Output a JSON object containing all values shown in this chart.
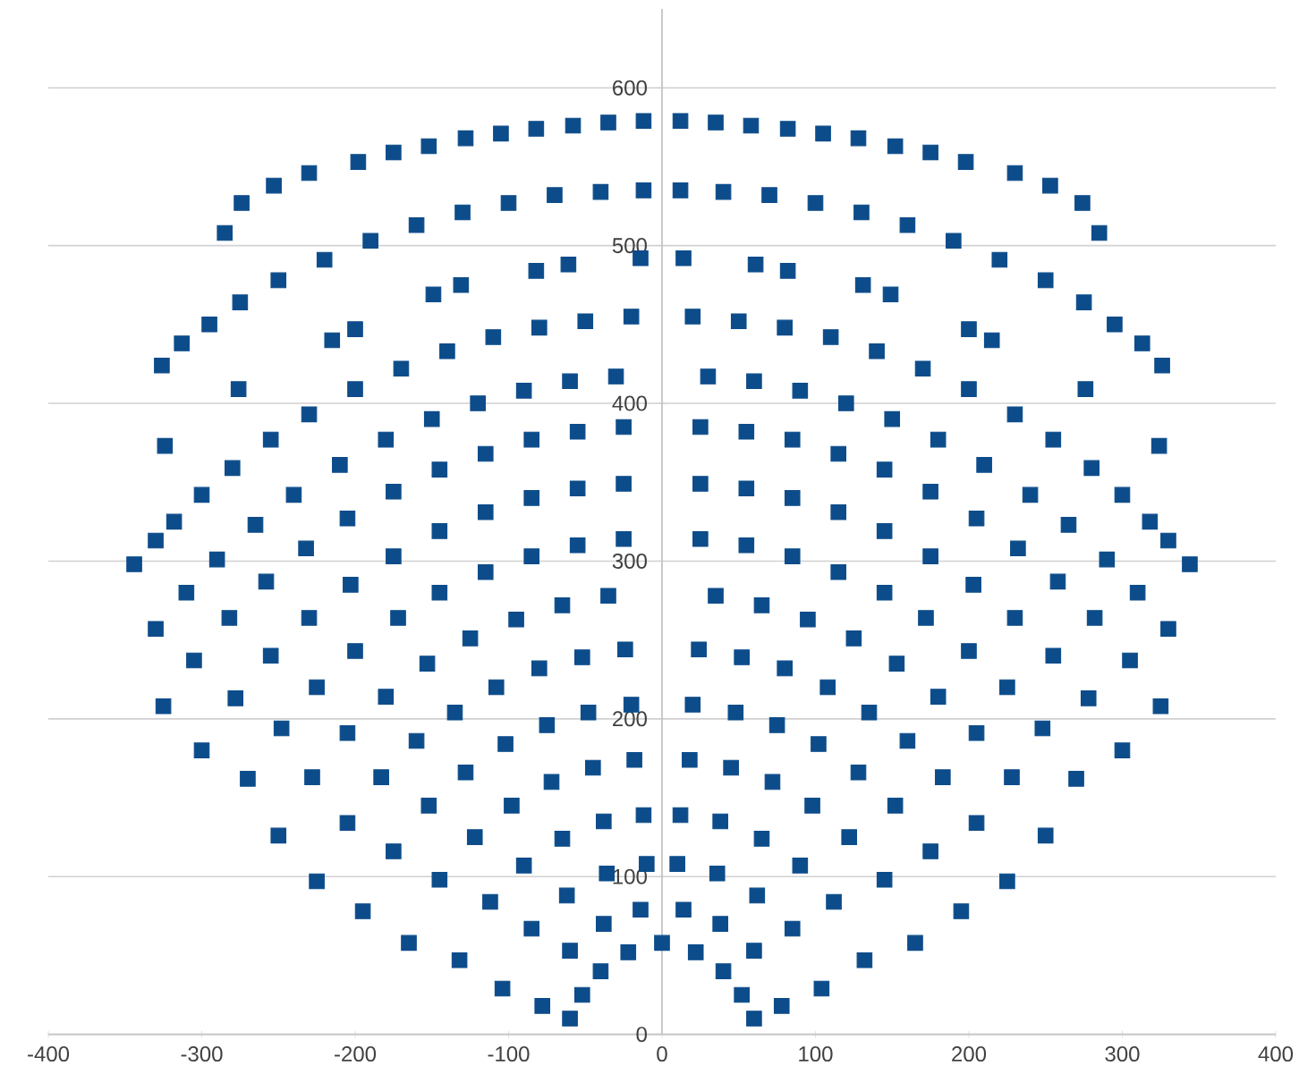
{
  "chart_data": {
    "type": "scatter",
    "x": [
      -285,
      -274,
      -253,
      -230,
      -198,
      -175,
      -152,
      -128,
      -105,
      -82,
      -58,
      -35,
      -12,
      285,
      274,
      253,
      230,
      198,
      175,
      152,
      128,
      105,
      82,
      58,
      35,
      12,
      -326,
      -313,
      -295,
      -275,
      -250,
      -220,
      -190,
      -160,
      -130,
      -100,
      -70,
      -40,
      -12,
      326,
      313,
      295,
      275,
      250,
      220,
      190,
      160,
      130,
      100,
      70,
      40,
      12,
      -324,
      -276,
      -215,
      -200,
      -149,
      -131,
      -82,
      -61,
      -14,
      324,
      276,
      215,
      200,
      149,
      131,
      82,
      61,
      14,
      -344,
      -330,
      -318,
      -300,
      -280,
      -255,
      -230,
      -200,
      -170,
      -140,
      -110,
      -80,
      -50,
      -20,
      344,
      330,
      318,
      300,
      280,
      255,
      230,
      200,
      170,
      140,
      110,
      80,
      50,
      20,
      -330,
      -310,
      -290,
      -265,
      -240,
      -210,
      -180,
      -150,
      -120,
      -90,
      -60,
      -30,
      330,
      310,
      290,
      265,
      240,
      210,
      180,
      150,
      120,
      90,
      60,
      30,
      -325,
      -305,
      -282,
      -258,
      -232,
      -205,
      -175,
      -145,
      -115,
      -85,
      -55,
      -25,
      325,
      305,
      282,
      258,
      232,
      205,
      175,
      145,
      115,
      85,
      55,
      25,
      -300,
      -278,
      -255,
      -230,
      -203,
      -175,
      -145,
      -115,
      -85,
      -55,
      -25,
      300,
      278,
      255,
      230,
      203,
      175,
      145,
      115,
      85,
      55,
      25,
      -270,
      -248,
      -225,
      -200,
      -172,
      -145,
      -115,
      -85,
      -55,
      -25,
      270,
      248,
      225,
      200,
      172,
      145,
      115,
      85,
      55,
      25,
      -250,
      -228,
      -205,
      -180,
      -153,
      -125,
      -95,
      -65,
      -35,
      250,
      228,
      205,
      180,
      153,
      125,
      95,
      65,
      35,
      -225,
      -205,
      -183,
      -160,
      -135,
      -108,
      -80,
      -52,
      -24,
      225,
      205,
      183,
      160,
      135,
      108,
      80,
      52,
      24,
      -195,
      -175,
      -152,
      -128,
      -102,
      -75,
      -48,
      -20,
      195,
      175,
      152,
      128,
      102,
      75,
      48,
      20,
      -165,
      -145,
      -122,
      -98,
      -72,
      -45,
      -18,
      165,
      145,
      122,
      98,
      72,
      45,
      18,
      -132,
      -112,
      -90,
      -65,
      -38,
      -12,
      132,
      112,
      90,
      65,
      38,
      12,
      -104,
      -85,
      -62,
      -36,
      -10,
      104,
      85,
      62,
      36,
      10,
      -78,
      -60,
      -38,
      -14,
      78,
      60,
      38,
      14,
      -60,
      -52,
      -40,
      -22,
      60,
      52,
      40,
      22,
      0
    ],
    "values": [
      508,
      527,
      538,
      546,
      553,
      559,
      563,
      568,
      571,
      574,
      576,
      578,
      579,
      508,
      527,
      538,
      546,
      553,
      559,
      563,
      568,
      571,
      574,
      576,
      578,
      579,
      424,
      438,
      450,
      464,
      478,
      491,
      503,
      513,
      521,
      527,
      532,
      534,
      535,
      424,
      438,
      450,
      464,
      478,
      491,
      503,
      513,
      521,
      527,
      532,
      534,
      535,
      373,
      409,
      440,
      447,
      469,
      475,
      484,
      488,
      492,
      373,
      409,
      440,
      447,
      469,
      475,
      484,
      488,
      492,
      298,
      313,
      325,
      342,
      359,
      377,
      393,
      409,
      422,
      433,
      442,
      448,
      452,
      455,
      298,
      313,
      325,
      342,
      359,
      377,
      393,
      409,
      422,
      433,
      442,
      448,
      452,
      455,
      257,
      280,
      301,
      323,
      342,
      361,
      377,
      390,
      400,
      408,
      414,
      417,
      257,
      280,
      301,
      323,
      342,
      361,
      377,
      390,
      400,
      408,
      414,
      417,
      208,
      237,
      264,
      287,
      308,
      327,
      344,
      358,
      368,
      377,
      382,
      385,
      208,
      237,
      264,
      287,
      308,
      327,
      344,
      358,
      368,
      377,
      382,
      385,
      180,
      213,
      240,
      264,
      285,
      303,
      319,
      331,
      340,
      346,
      349,
      180,
      213,
      240,
      264,
      285,
      303,
      319,
      331,
      340,
      346,
      349,
      162,
      194,
      220,
      243,
      264,
      280,
      293,
      303,
      310,
      314,
      162,
      194,
      220,
      243,
      264,
      280,
      293,
      303,
      310,
      314,
      126,
      163,
      191,
      214,
      235,
      251,
      263,
      272,
      278,
      126,
      163,
      191,
      214,
      235,
      251,
      263,
      272,
      278,
      97,
      134,
      163,
      186,
      204,
      220,
      232,
      239,
      244,
      97,
      134,
      163,
      186,
      204,
      220,
      232,
      239,
      244,
      78,
      116,
      145,
      166,
      184,
      196,
      204,
      209,
      78,
      116,
      145,
      166,
      184,
      196,
      204,
      209,
      58,
      98,
      125,
      145,
      160,
      169,
      174,
      58,
      98,
      125,
      145,
      160,
      169,
      174,
      47,
      84,
      107,
      124,
      135,
      139,
      47,
      84,
      107,
      124,
      135,
      139,
      29,
      67,
      88,
      102,
      108,
      29,
      67,
      88,
      102,
      108,
      18,
      53,
      70,
      79,
      18,
      53,
      70,
      79,
      10,
      25,
      40,
      52,
      10,
      25,
      40,
      52,
      58
    ],
    "color": "#0d4c8a",
    "marker": "square",
    "xlim": [
      -400,
      400
    ],
    "ylim": [
      0,
      650
    ],
    "xticks": [
      -400,
      -300,
      -200,
      -100,
      0,
      100,
      200,
      300,
      400
    ],
    "yticks": [
      0,
      100,
      200,
      300,
      400,
      500,
      600
    ],
    "grid": "y"
  }
}
